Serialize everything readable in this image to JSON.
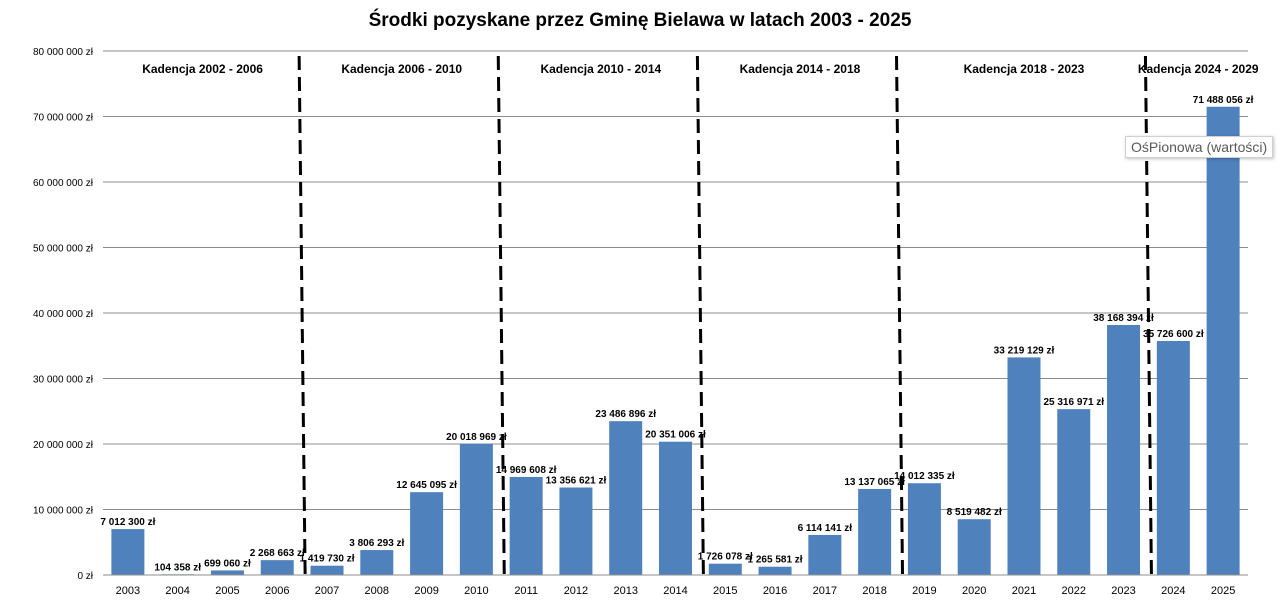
{
  "tooltip": {
    "text": "OśPionowa (wartości)"
  },
  "chart_data": {
    "type": "bar",
    "title": "Środki pozyskane przez Gminę Bielawa w latach 2003 - 2025",
    "xlabel": "",
    "ylabel": "",
    "ylim": [
      0,
      80000000
    ],
    "yticks": [
      0,
      10000000,
      20000000,
      30000000,
      40000000,
      50000000,
      60000000,
      70000000,
      80000000
    ],
    "ytick_labels": [
      "0 zł",
      "10 000 000 zł",
      "20 000 000 zł",
      "30 000 000 zł",
      "40 000 000 zł",
      "50 000 000 zł",
      "60 000 000 zł",
      "70 000 000 zł",
      "80 000 000 zł"
    ],
    "grid": true,
    "bar_color": "#4f81bd",
    "categories": [
      "2003",
      "2004",
      "2005",
      "2006",
      "2007",
      "2008",
      "2009",
      "2010",
      "2011",
      "2012",
      "2013",
      "2014",
      "2015",
      "2016",
      "2017",
      "2018",
      "2019",
      "2020",
      "2021",
      "2022",
      "2023",
      "2024",
      "2025"
    ],
    "values": [
      7012300,
      104358,
      699060,
      2268663,
      1419730,
      3806293,
      12645095,
      20018969,
      14969608,
      13356621,
      23486896,
      20351006,
      1726078,
      1265581,
      6114141,
      13137065,
      14012335,
      8519482,
      33219129,
      25316971,
      38168394,
      35726600,
      71488056
    ],
    "data_labels": [
      "7 012 300 zł",
      "104 358 zł",
      "699 060 zł",
      "2 268 663 zł",
      "1 419 730 zł",
      "3 806 293 zł",
      "12 645 095 zł",
      "20 018 969 zł",
      "14 969 608 zł",
      "13 356 621 zł",
      "23 486 896 zł",
      "20 351 006 zł",
      "1 726 078 zł",
      "1 265 581 zł",
      "6 114 141 zł",
      "13 137 065 zł",
      "14 012 335 zł",
      "8 519 482 zł",
      "33 219 129 zł",
      "25 316 971 zł",
      "38 168 394 zł",
      "35 726 600 zł",
      "71 488 056 zł"
    ],
    "annotations": [
      {
        "text": "Kadencja 2002 - 2006",
        "from": "2003",
        "to": "2006"
      },
      {
        "text": "Kadencja 2006 - 2010",
        "from": "2007",
        "to": "2010"
      },
      {
        "text": "Kadencja 2010 - 2014",
        "from": "2011",
        "to": "2014"
      },
      {
        "text": "Kadencja 2014 - 2018",
        "from": "2015",
        "to": "2018"
      },
      {
        "text": "Kadencja 2018 - 2023",
        "from": "2019",
        "to": "2023"
      },
      {
        "text": "Kadencja 2024 - 2029",
        "from": "2024",
        "to": "2025"
      }
    ],
    "term_dividers_after": [
      "2006",
      "2010",
      "2014",
      "2018",
      "2023"
    ]
  }
}
